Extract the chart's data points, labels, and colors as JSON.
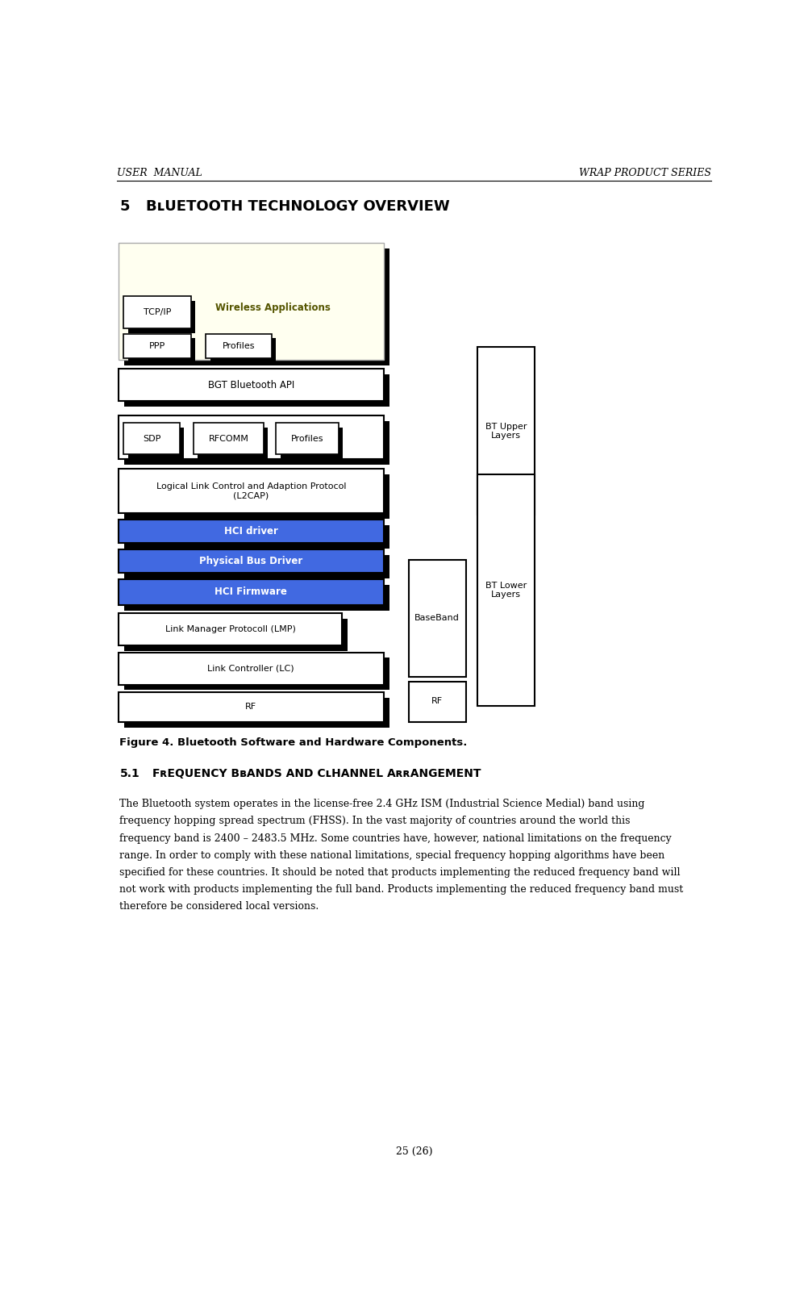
{
  "page_width": 10.02,
  "page_height": 16.3,
  "header_left": "USER  MANUAL",
  "header_right": "WRAP PRODUCT SERIES",
  "figure_caption": "Figure 4. Bluetooth Software and Hardware Components.",
  "body_lines": [
    "The Bluetooth system operates in the license-free 2.4 GHz ISM (Industrial Science Medial) band using",
    "frequency hopping spread spectrum (FHSS). In the vast majority of countries around the world this",
    "frequency band is 2400 – 2483.5 MHz. Some countries have, however, national limitations on the frequency",
    "range. In order to comply with these national limitations, special frequency hopping algorithms have been",
    "specified for these countries. It should be noted that products implementing the reduced frequency band will",
    "not work with products implementing the full band. Products implementing the reduced frequency band must",
    "therefore be considered local versions."
  ],
  "footer_text": "25 (26)",
  "blue_color": "#4169E1",
  "yellow_bg": "#FFFFF0",
  "white_bg": "#FFFFFF",
  "black": "#000000"
}
